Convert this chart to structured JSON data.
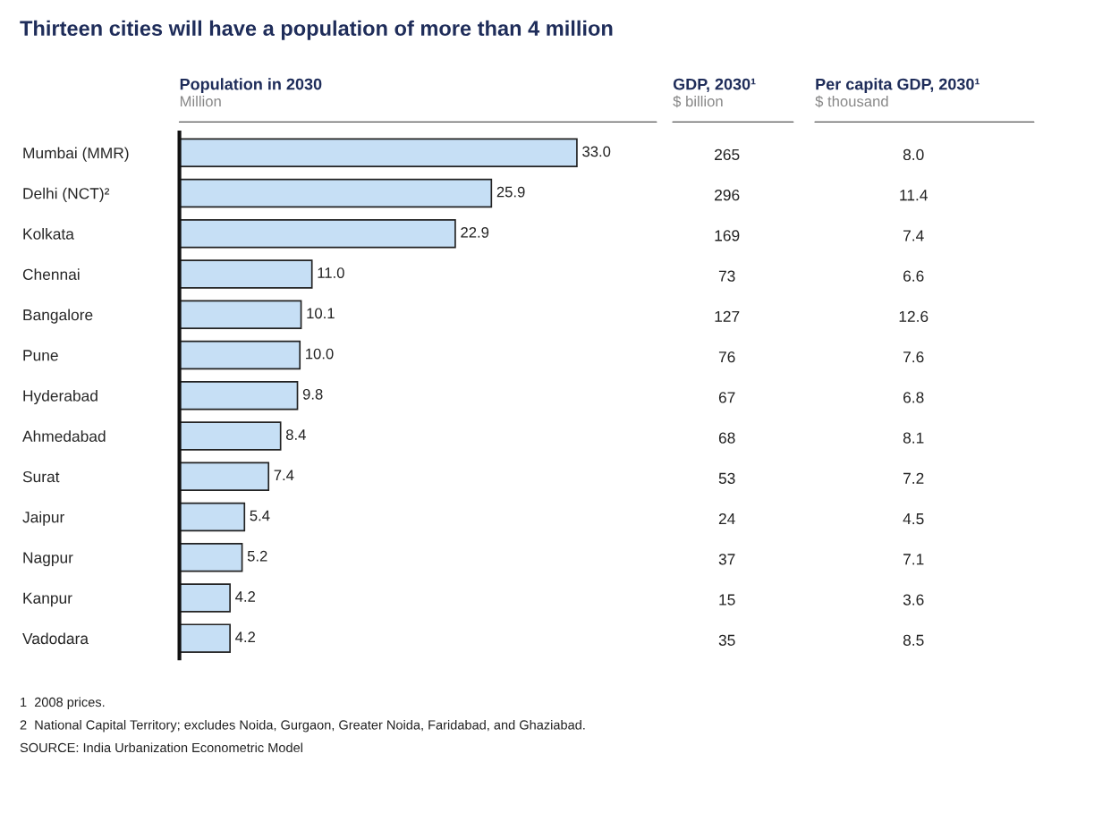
{
  "chart_data": [
    {
      "type": "bar",
      "orientation": "horizontal",
      "title": "Thirteen cities will have a population of more than 4 million",
      "xlabel": "Population in 2030",
      "subtitle": "Million",
      "categories": [
        "Mumbai (MMR)",
        "Delhi (NCT)²",
        "Kolkata",
        "Chennai",
        "Bangalore",
        "Pune",
        "Hyderabad",
        "Ahmedabad",
        "Surat",
        "Jaipur",
        "Nagpur",
        "Kanpur",
        "Vadodara"
      ],
      "values": [
        33.0,
        25.9,
        22.9,
        11.0,
        10.1,
        10.0,
        9.8,
        8.4,
        7.4,
        5.4,
        5.2,
        4.2,
        4.2
      ],
      "value_labels": [
        "33.0",
        "25.9",
        "22.9",
        "11.0",
        "10.1",
        "10.0",
        "9.8",
        "8.4",
        "7.4",
        "5.4",
        "5.2",
        "4.2",
        "4.2"
      ],
      "color": "#c6dff5",
      "tick_labels": "y",
      "annotations": [
        "1  2008 prices.",
        "2  National Capital Territory; excludes Noida, Gurgaon, Greater Noida, Faridabad, and Ghaziabad.",
        "SOURCE: India Urbanization Econometric Model"
      ]
    },
    {
      "type": "other",
      "title": "GDP, 2030¹",
      "subtitle": "$ billion",
      "categories": [
        null,
        null,
        null,
        null,
        null,
        null,
        null,
        null,
        null,
        null,
        null,
        null,
        null
      ],
      "values": [
        265,
        296,
        169,
        73,
        127,
        76,
        67,
        68,
        53,
        24,
        37,
        15,
        35
      ],
      "data_labels": true
    },
    {
      "type": "other",
      "title": "Per capita GDP, 2030¹",
      "subtitle": "$ thousand",
      "categories": [
        null,
        null,
        null,
        null,
        null,
        null,
        null,
        null,
        null,
        null,
        null,
        null,
        null
      ],
      "values": [
        8.0,
        11.4,
        7.4,
        6.6,
        12.6,
        7.6,
        6.8,
        8.1,
        7.2,
        4.5,
        7.1,
        3.6,
        8.5
      ],
      "value_labels": [
        "8.0",
        "11.4",
        "7.4",
        "6.6",
        "12.6",
        "7.6",
        "6.8",
        "8.1",
        "7.2",
        "4.5",
        "7.1",
        "3.6",
        "8.5"
      ]
    }
  ]
}
